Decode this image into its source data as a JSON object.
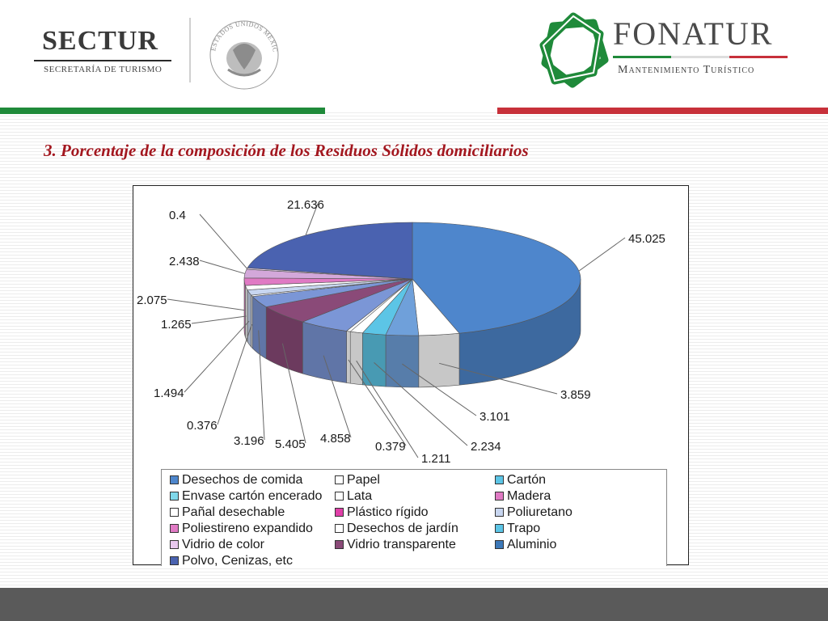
{
  "header": {
    "sectur": {
      "name": "SECTUR",
      "subtitle": "SECRETARÍA DE TURISMO"
    },
    "seal": {
      "text": "ESTADOS UNIDOS MEXICANOS"
    },
    "fonatur": {
      "name": "FONATUR",
      "subtitle": "Mantenimiento Turístico"
    },
    "colors": {
      "green": "#1f8a3a",
      "red": "#c7303a",
      "logo_green": "#1f8a3a"
    }
  },
  "slide": {
    "title": "3. Porcentaje de la composición de los Residuos Sólidos domiciliarios"
  },
  "chart_data": {
    "type": "pie",
    "title": "",
    "values": [
      45.025,
      3.859,
      3.101,
      2.234,
      1.211,
      0.379,
      4.858,
      5.405,
      3.196,
      0.376,
      1.494,
      1.265,
      2.075,
      2.438,
      0.4,
      21.636
    ],
    "data_labels": [
      "45.025",
      "3.859",
      "3.101",
      "2.234",
      "1.211",
      "0.379",
      "4.858",
      "5.405",
      "3.196",
      "0.376",
      "1.494",
      "1.265",
      "2.075",
      "2.438",
      "0.4",
      "21.636"
    ],
    "slice_colors": [
      "#4e86cc",
      "#ffffff",
      "#6fa0da",
      "#5cc5e6",
      "#ffffff",
      "#ffffff",
      "#7b96d6",
      "#8a4a78",
      "#7b96d6",
      "#ffffff",
      "#c8d6f0",
      "#ffffff",
      "#e07ac4",
      "#d3a8da",
      "#e8d4ee",
      "#4a62b0"
    ],
    "legend_placement": "bottom",
    "legend": [
      {
        "label": "Desechos de comida",
        "color": "#4e86cc"
      },
      {
        "label": "Papel",
        "color": "#ffffff"
      },
      {
        "label": "Cartón",
        "color": "#5cc5e6"
      },
      {
        "label": "Envase cartón encerado",
        "color": "#7fd8ea"
      },
      {
        "label": "Lata",
        "color": "#ffffff"
      },
      {
        "label": "Madera",
        "color": "#e07ac4"
      },
      {
        "label": "Pañal desechable",
        "color": "#ffffff"
      },
      {
        "label": "Plástico rígido",
        "color": "#e03fa8"
      },
      {
        "label": "Poliuretano",
        "color": "#c8d6f0"
      },
      {
        "label": "Poliestireno expandido",
        "color": "#e07ac4"
      },
      {
        "label": "Desechos de jardín",
        "color": "#ffffff"
      },
      {
        "label": "Trapo",
        "color": "#5cc5e6"
      },
      {
        "label": "Vidrio de color",
        "color": "#e8c8ee"
      },
      {
        "label": "Vidrio transparente",
        "color": "#8a4a78"
      },
      {
        "label": "Aluminio",
        "color": "#3c78b8"
      },
      {
        "label": "Polvo, Cenizas, etc",
        "color": "#4a62b0"
      }
    ]
  }
}
